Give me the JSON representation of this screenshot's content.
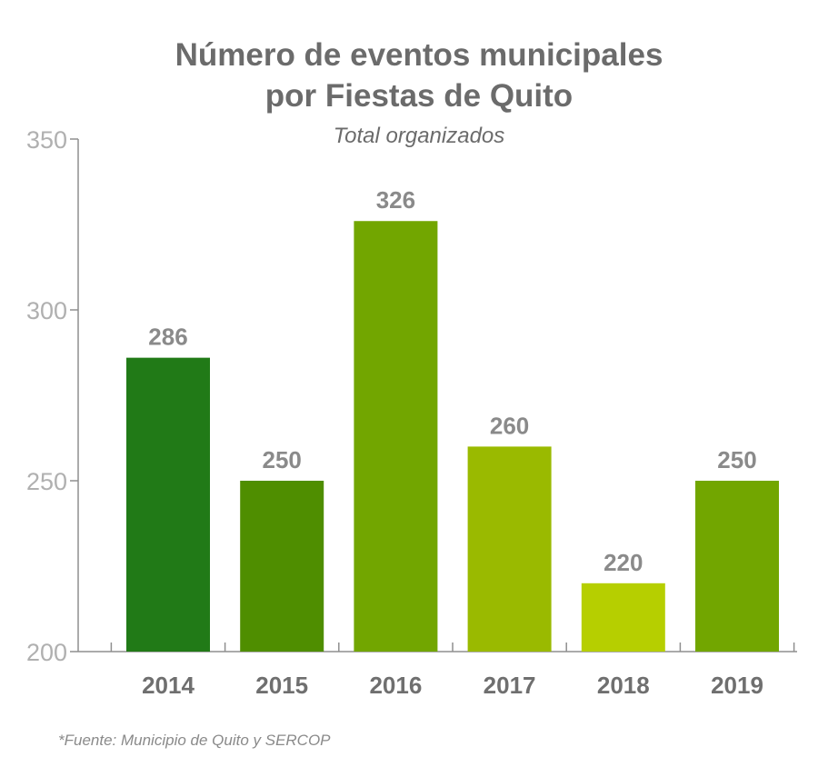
{
  "chart_data": {
    "type": "bar",
    "title_line1": "Número de eventos municipales",
    "title_line2": "por Fiestas de Quito",
    "subtitle": "Total  organizados",
    "categories": [
      "2014",
      "2015",
      "2016",
      "2017",
      "2018",
      "2019"
    ],
    "values": [
      286,
      250,
      326,
      260,
      220,
      250
    ],
    "data_labels": [
      "286",
      "250",
      "326",
      "260",
      "220",
      "250"
    ],
    "bar_colors": [
      "#217a17",
      "#4f8e00",
      "#72a600",
      "#9aba00",
      "#b6cf00",
      "#72a600"
    ],
    "yticks": [
      "200",
      "250",
      "300",
      "350"
    ],
    "ylim": [
      200,
      350
    ],
    "grid": false,
    "source": "*Fuente: Municipio de Quito y SERCOP"
  }
}
